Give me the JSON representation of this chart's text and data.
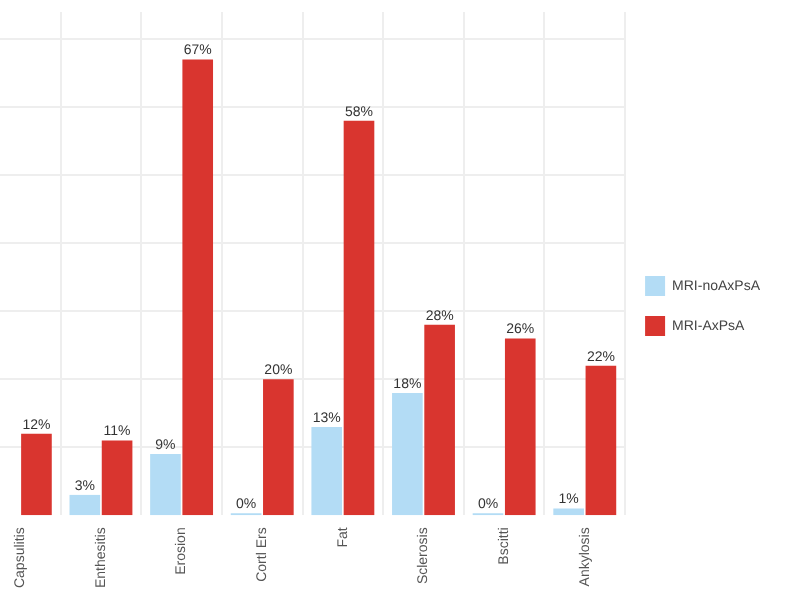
{
  "chart_data": {
    "type": "bar",
    "categories": [
      "Capsulitis",
      "Enthesitis",
      "Erosion",
      "Cortl Ers",
      "Fat",
      "Sclerosis",
      "Bscitti",
      "Ankylosis"
    ],
    "series": [
      {
        "name": "MRI-noAxPsA",
        "color": "#b3dcf5",
        "values": [
          null,
          3,
          9,
          0,
          13,
          18,
          0,
          1
        ],
        "value_labels": [
          null,
          "3%",
          "9%",
          "0%",
          "13%",
          "18%",
          "0%",
          "1%"
        ]
      },
      {
        "name": "MRI-AxPsA",
        "color": "#d9352f",
        "values": [
          12,
          11,
          67,
          20,
          58,
          28,
          26,
          22
        ],
        "value_labels": [
          "12%",
          "11%",
          "67%",
          "20%",
          "58%",
          "28%",
          "26%",
          "22%"
        ]
      }
    ],
    "ylim": [
      0,
      74
    ],
    "yticks": [
      10,
      20,
      30,
      40,
      50,
      60,
      70
    ],
    "grid": true,
    "legend": "right",
    "tick_labels": "x"
  }
}
